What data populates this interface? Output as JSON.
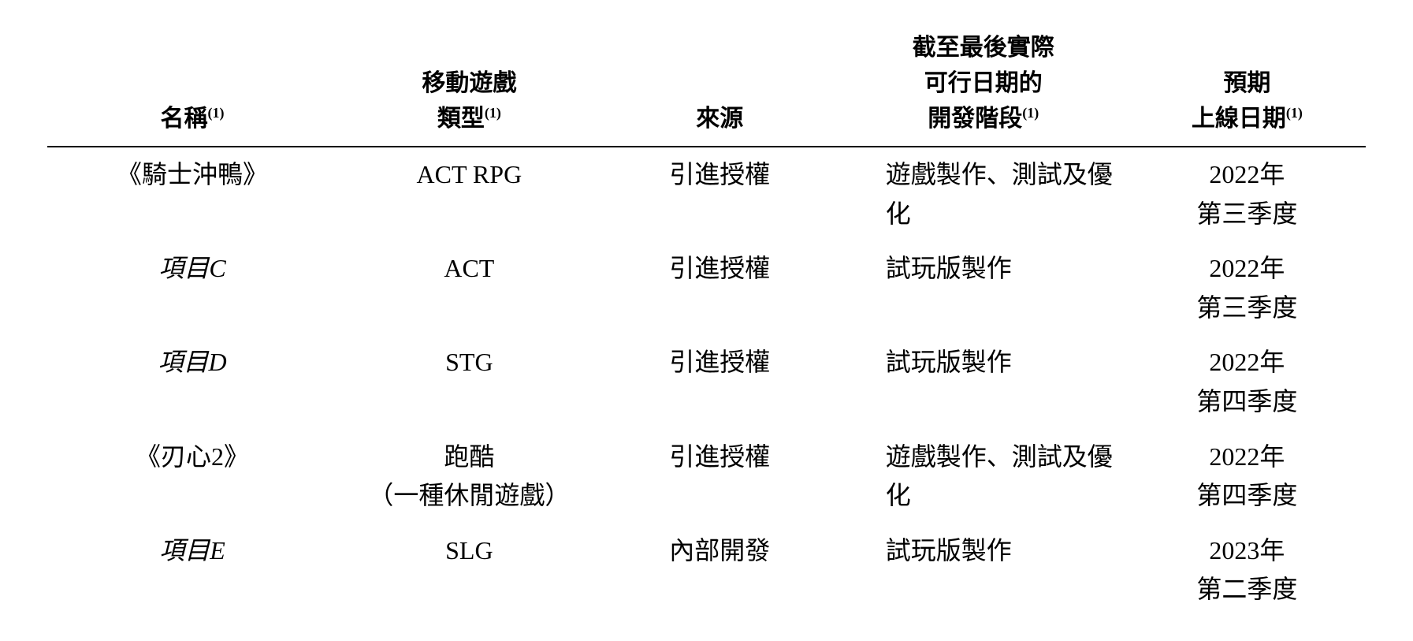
{
  "table": {
    "headers": {
      "name": "名稱",
      "name_sup": "(1)",
      "type_line1": "移動遊戲",
      "type_line2": "類型",
      "type_sup": "(1)",
      "source": "來源",
      "stage_line1": "截至最後實際",
      "stage_line2": "可行日期的",
      "stage_line3": "開發階段",
      "stage_sup": "(1)",
      "date_line1": "預期",
      "date_line2": "上線日期",
      "date_sup": "(1)"
    },
    "rows": [
      {
        "name": "《騎士沖鴨》",
        "name_italic": false,
        "type": "ACT RPG",
        "type_sub": "",
        "source": "引進授權",
        "stage": "遊戲製作、測試及優化",
        "date_line1": "2022年",
        "date_line2": "第三季度"
      },
      {
        "name": "項目C",
        "name_italic": true,
        "type": "ACT",
        "type_sub": "",
        "source": "引進授權",
        "stage": "試玩版製作",
        "date_line1": "2022年",
        "date_line2": "第三季度"
      },
      {
        "name": "項目D",
        "name_italic": true,
        "type": "STG",
        "type_sub": "",
        "source": "引進授權",
        "stage": "試玩版製作",
        "date_line1": "2022年",
        "date_line2": "第四季度"
      },
      {
        "name": "《刃心2》",
        "name_italic": false,
        "type": "跑酷",
        "type_sub": "（一種休閒遊戲）",
        "source": "引進授權",
        "stage": "遊戲製作、測試及優化",
        "date_line1": "2022年",
        "date_line2": "第四季度"
      },
      {
        "name": "項目E",
        "name_italic": true,
        "type": "SLG",
        "type_sub": "",
        "source": "內部開發",
        "stage": "試玩版製作",
        "date_line1": "2023年",
        "date_line2": "第二季度"
      }
    ]
  },
  "styling": {
    "background_color": "#ffffff",
    "text_color": "#000000",
    "border_color": "#000000",
    "header_fontsize": 30,
    "body_fontsize": 32,
    "sup_fontsize": 18,
    "font_family": "serif",
    "column_widths_pct": [
      22,
      20,
      18,
      22,
      18
    ],
    "column_alignments": [
      "center",
      "center",
      "center",
      "left",
      "center"
    ]
  }
}
